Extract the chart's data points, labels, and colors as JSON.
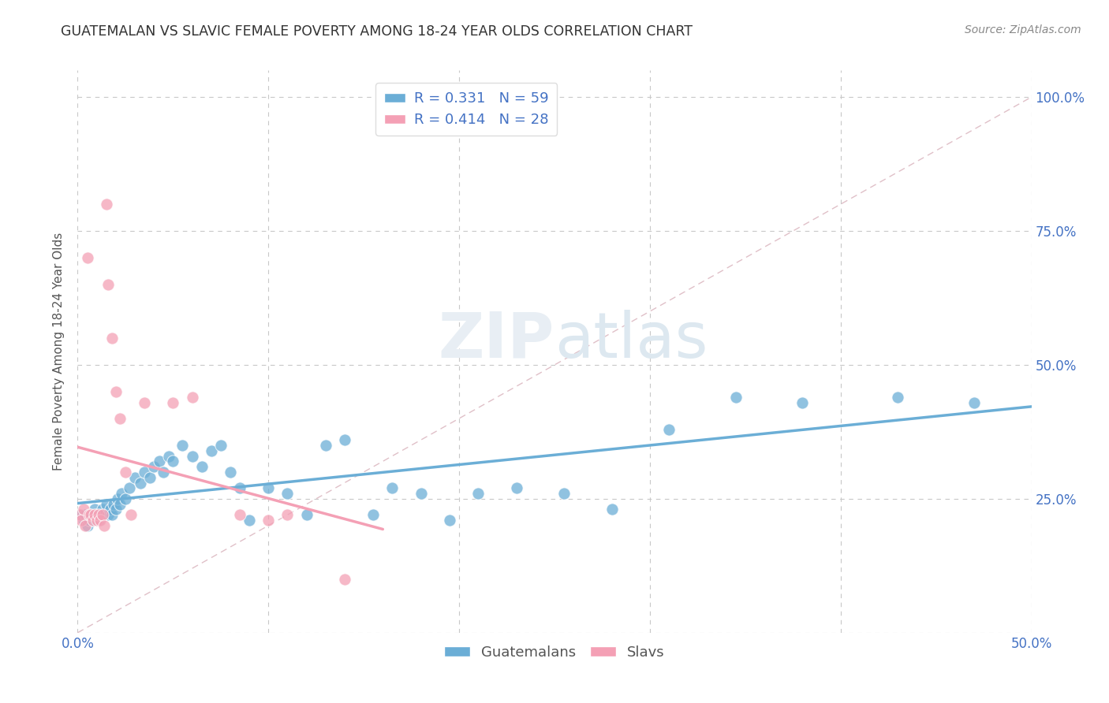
{
  "title": "GUATEMALAN VS SLAVIC FEMALE POVERTY AMONG 18-24 YEAR OLDS CORRELATION CHART",
  "source": "Source: ZipAtlas.com",
  "ylabel": "Female Poverty Among 18-24 Year Olds",
  "xlim": [
    0.0,
    0.5
  ],
  "ylim": [
    0.0,
    1.05
  ],
  "xticks": [
    0.0,
    0.1,
    0.2,
    0.3,
    0.4,
    0.5
  ],
  "xtick_labels": [
    "0.0%",
    "",
    "",
    "",
    "",
    "50.0%"
  ],
  "ytick_labels_right": [
    "100.0%",
    "75.0%",
    "50.0%",
    "25.0%",
    ""
  ],
  "yticks_right": [
    1.0,
    0.75,
    0.5,
    0.25,
    0.0
  ],
  "R_guatemalan": 0.331,
  "N_guatemalan": 59,
  "R_slavic": 0.414,
  "N_slavic": 28,
  "guatemalan_color": "#6baed6",
  "slavic_color": "#f4a0b5",
  "legend_label_guatemalan": "Guatemalans",
  "legend_label_slavic": "Slavs",
  "background_color": "#ffffff",
  "grid_color": "#c8c8c8",
  "guatemalan_x": [
    0.002,
    0.003,
    0.004,
    0.005,
    0.006,
    0.007,
    0.008,
    0.009,
    0.01,
    0.011,
    0.012,
    0.013,
    0.014,
    0.015,
    0.016,
    0.017,
    0.018,
    0.019,
    0.02,
    0.021,
    0.022,
    0.023,
    0.025,
    0.027,
    0.03,
    0.033,
    0.035,
    0.038,
    0.04,
    0.043,
    0.045,
    0.048,
    0.05,
    0.055,
    0.06,
    0.065,
    0.07,
    0.075,
    0.08,
    0.085,
    0.09,
    0.1,
    0.11,
    0.12,
    0.13,
    0.14,
    0.155,
    0.165,
    0.18,
    0.195,
    0.21,
    0.23,
    0.255,
    0.28,
    0.31,
    0.345,
    0.38,
    0.43,
    0.47
  ],
  "guatemalan_y": [
    0.22,
    0.21,
    0.22,
    0.2,
    0.21,
    0.22,
    0.21,
    0.23,
    0.22,
    0.21,
    0.22,
    0.23,
    0.22,
    0.24,
    0.22,
    0.23,
    0.22,
    0.24,
    0.23,
    0.25,
    0.24,
    0.26,
    0.25,
    0.27,
    0.29,
    0.28,
    0.3,
    0.29,
    0.31,
    0.32,
    0.3,
    0.33,
    0.32,
    0.35,
    0.33,
    0.31,
    0.34,
    0.35,
    0.3,
    0.27,
    0.21,
    0.27,
    0.26,
    0.22,
    0.35,
    0.36,
    0.22,
    0.27,
    0.26,
    0.21,
    0.26,
    0.27,
    0.26,
    0.23,
    0.38,
    0.44,
    0.43,
    0.44,
    0.43
  ],
  "slavic_x": [
    0.001,
    0.002,
    0.003,
    0.004,
    0.005,
    0.006,
    0.007,
    0.008,
    0.009,
    0.01,
    0.011,
    0.012,
    0.013,
    0.014,
    0.015,
    0.016,
    0.018,
    0.02,
    0.022,
    0.025,
    0.028,
    0.035,
    0.05,
    0.06,
    0.085,
    0.1,
    0.11,
    0.14
  ],
  "slavic_y": [
    0.22,
    0.21,
    0.23,
    0.2,
    0.7,
    0.22,
    0.22,
    0.21,
    0.22,
    0.21,
    0.22,
    0.21,
    0.22,
    0.2,
    0.8,
    0.65,
    0.55,
    0.45,
    0.4,
    0.3,
    0.22,
    0.43,
    0.43,
    0.44,
    0.22,
    0.21,
    0.22,
    0.1
  ]
}
